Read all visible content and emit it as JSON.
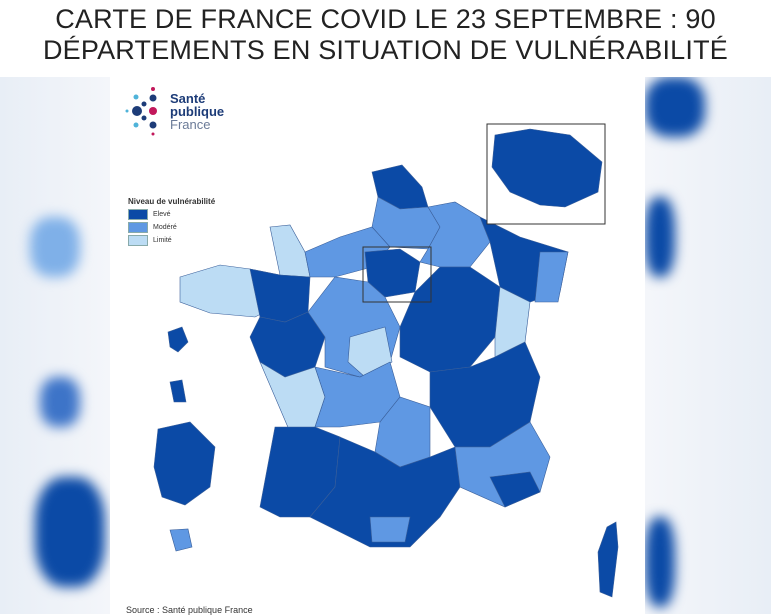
{
  "headline": {
    "line1": "CARTE DE FRANCE COVID LE 23 SEPTEMBRE : 90",
    "line2": "DÉPARTEMENTS EN SITUATION DE VULNÉRABILITÉ"
  },
  "logo": {
    "line1": "Santé",
    "line2": "publique",
    "line3": "France"
  },
  "legend": {
    "title": "Niveau de vulnérabilité",
    "items": [
      {
        "label": "Elevé",
        "color": "#0b4aa6"
      },
      {
        "label": "Modéré",
        "color": "#5f98e3"
      },
      {
        "label": "Limité",
        "color": "#bcdcf4"
      }
    ]
  },
  "source": "Source : Santé publique France"
}
